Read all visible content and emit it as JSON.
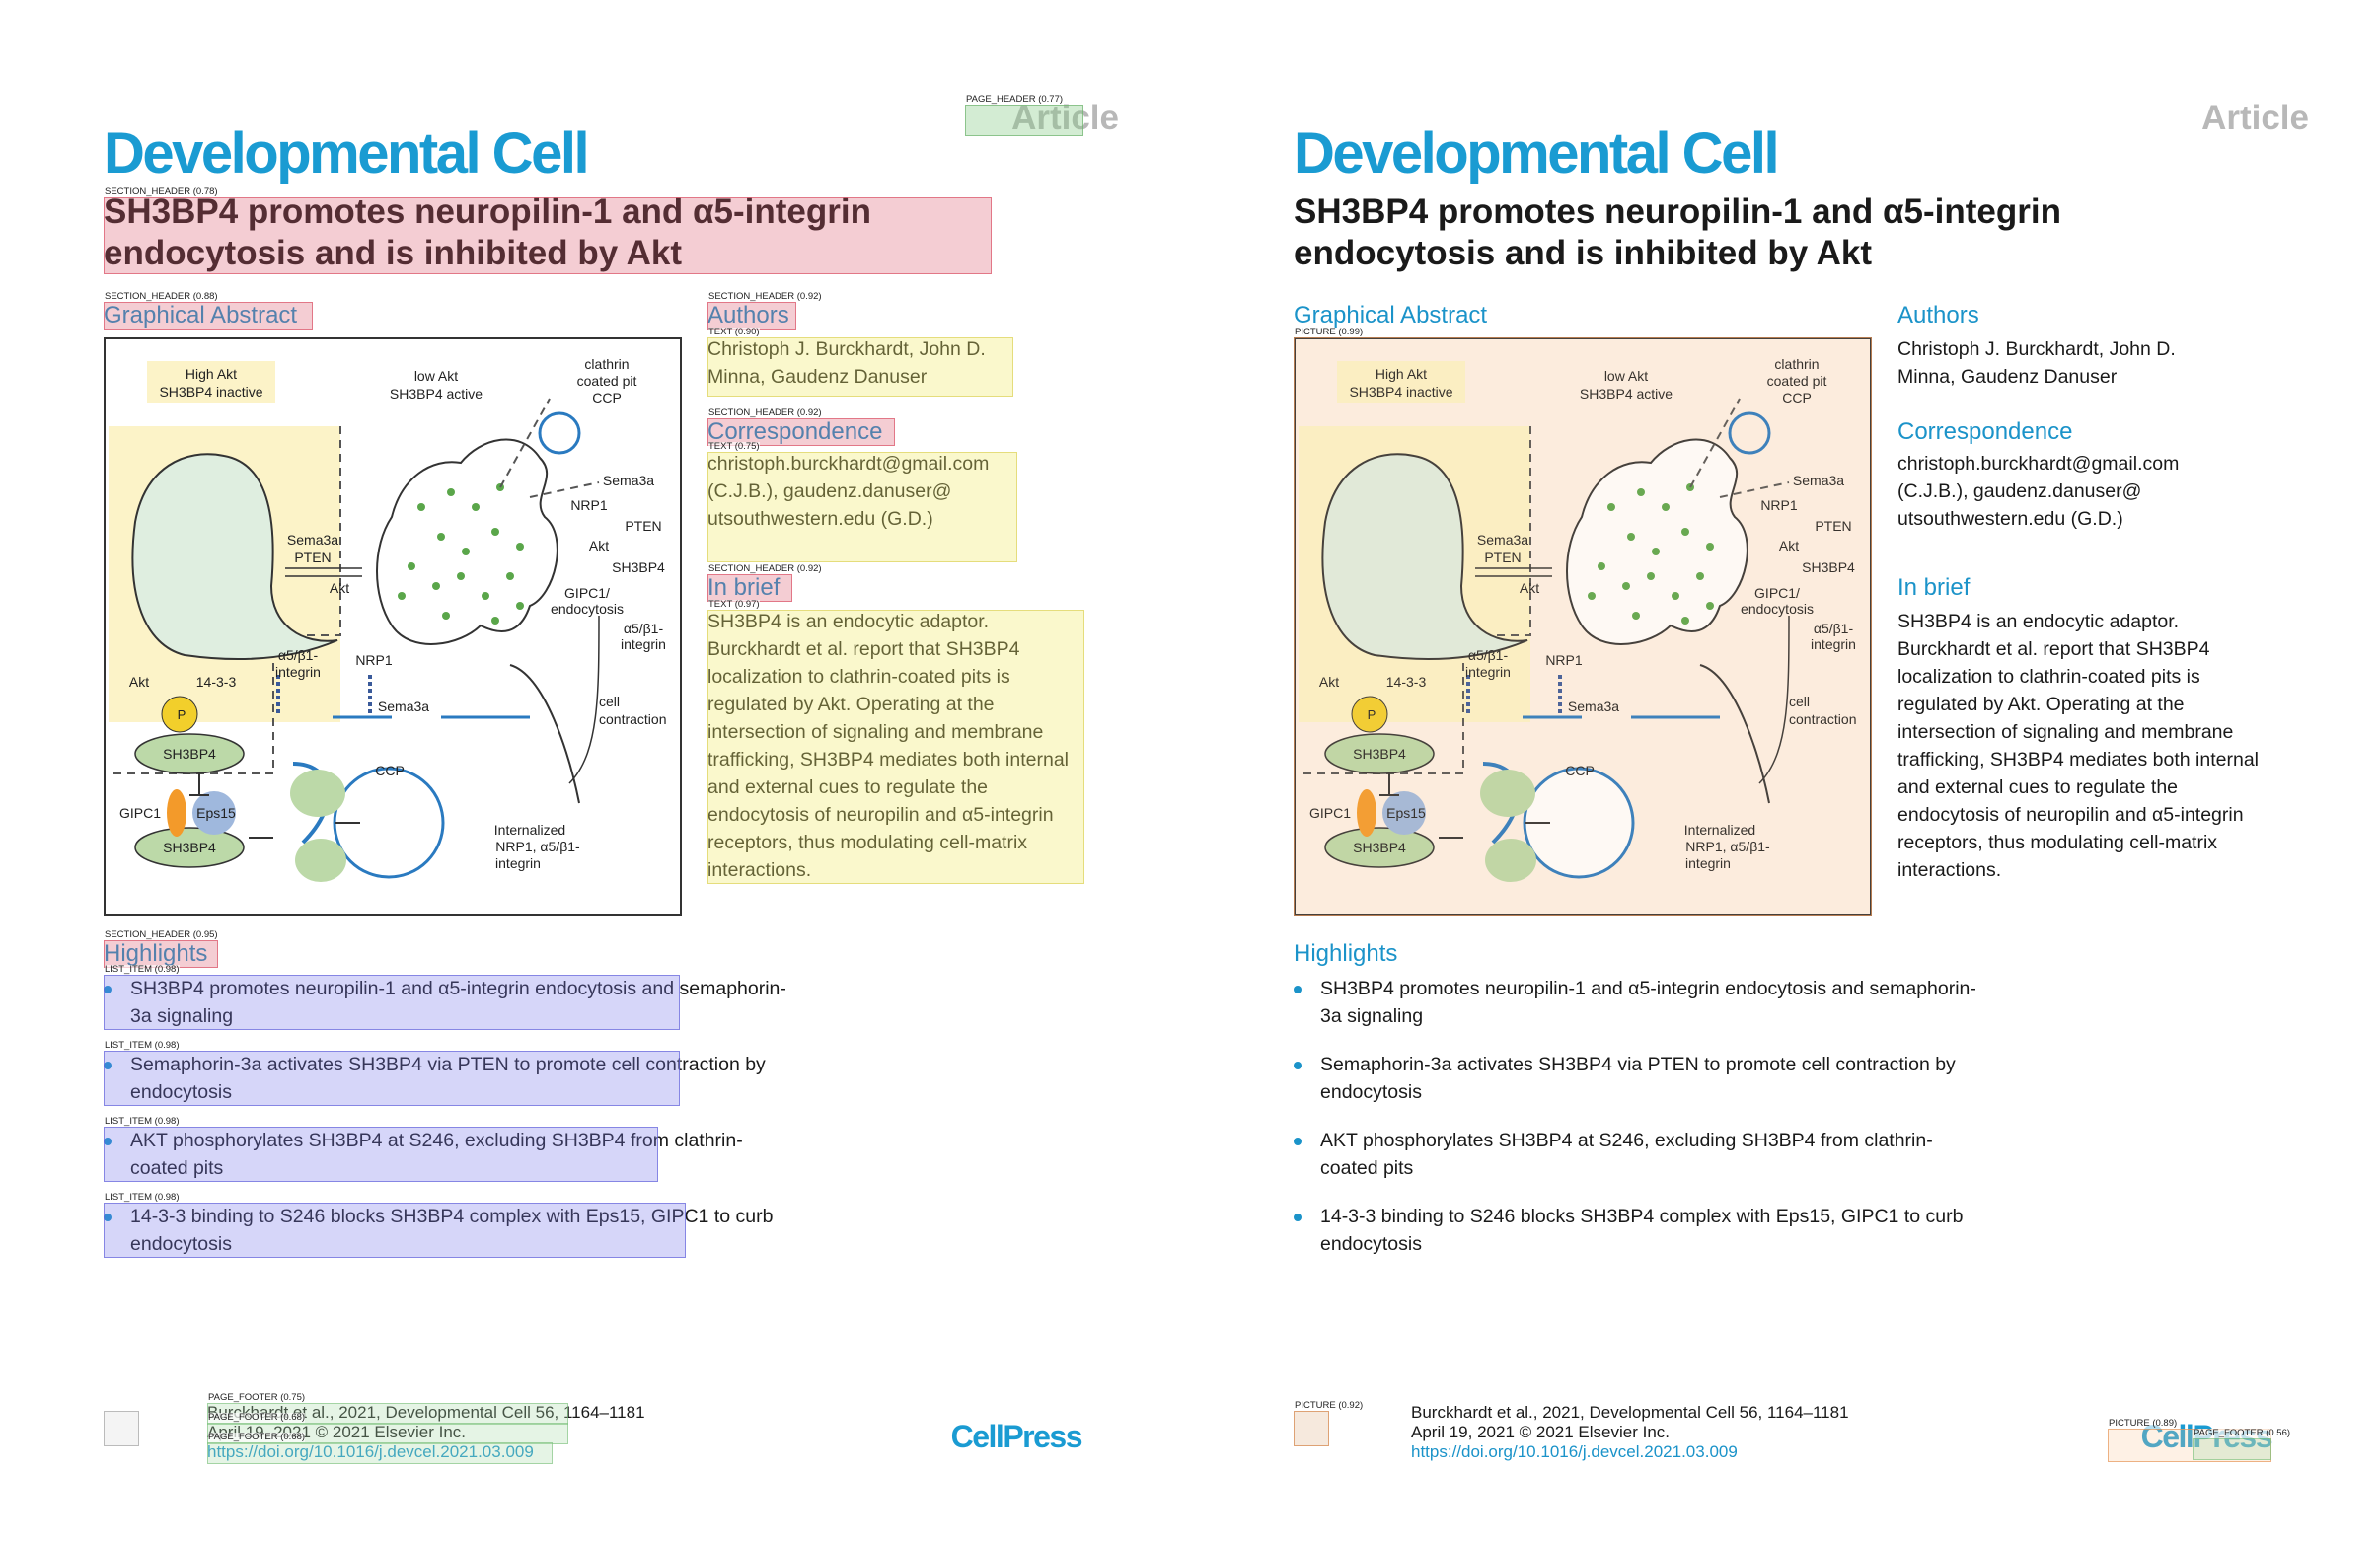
{
  "journal": "Developmental Cell",
  "article_label": "Article",
  "title": "SH3BP4 promotes neuropilin-1 and α5-integrin endocytosis and is inhibited by Akt",
  "sections": {
    "graphical_abstract": "Graphical Abstract",
    "authors": "Authors",
    "correspondence": "Correspondence",
    "in_brief": "In brief",
    "highlights": "Highlights"
  },
  "authors": "Christoph J. Burckhardt, John D. Minna, Gaudenz Danuser",
  "correspondence": "christoph.burckhardt@gmail.com (C.J.B.), gaudenz.danuser@ utsouthwestern.edu (G.D.)",
  "in_brief": "SH3BP4 is an endocytic adaptor. Burckhardt et al. report that SH3BP4 localization to clathrin-coated pits is regulated by Akt. Operating at the intersection of signaling and membrane trafficking, SH3BP4 mediates both internal and external cues to regulate the endocytosis of neuropilin and α5-integrin receptors, thus modulating cell-matrix interactions.",
  "highlights": [
    "SH3BP4 promotes neuropilin-1 and α5-integrin endocytosis and semaphorin-3a signaling",
    "Semaphorin-3a activates SH3BP4 via PTEN to promote cell contraction by endocytosis",
    "AKT phosphorylates SH3BP4 at S246, excluding SH3BP4 from clathrin-coated pits",
    "14-3-3 binding to S246 blocks SH3BP4 complex with Eps15, GIPC1 to curb endocytosis"
  ],
  "footer": {
    "citation": "Burckhardt et al., 2021, Developmental Cell 56, 1164–1181",
    "date": "April 19, 2021 © 2021 Elsevier Inc.",
    "doi": "https://doi.org/10.1016/j.devcel.2021.03.009"
  },
  "publisher": "CellPress",
  "figure": {
    "high_akt": "High Akt",
    "sh3bp4_inactive": "SH3BP4 inactive",
    "low_akt": "low Akt",
    "sh3bp4_active": "SH3BP4 active",
    "clathrin": "clathrin",
    "coated_pit": "coated pit",
    "ccp": "CCP",
    "sema3a": "Sema3a",
    "nrp1": "NRP1",
    "pten": "PTEN",
    "akt": "Akt",
    "sh3bp4": "SH3BP4",
    "gipc1_endocytosis_1": "GIPC1/",
    "gipc1_endocytosis_2": "endocytosis",
    "a5b1_1": "α5/β1-",
    "a5b1_2": "integrin",
    "cell": "cell",
    "contraction": "contraction",
    "sema3a_pten_1": "Sema3a",
    "sema3a_pten_2": "PTEN",
    "akt_arrow": "Akt",
    "fourteen33": "14-3-3",
    "p": "P",
    "gipc1": "GIPC1",
    "eps15": "Eps15",
    "internalized_1": "Internalized",
    "internalized_2": "NRP1, α5/β1-",
    "internalized_3": "integrin"
  },
  "overlay_tags": {
    "page_header": "PAGE_HEADER (0.77)",
    "title": "SECTION_HEADER (0.78)",
    "ga": "SECTION_HEADER (0.88)",
    "authors": "SECTION_HEADER (0.92)",
    "authors_text": "TEXT (0.90)",
    "corr": "SECTION_HEADER (0.92)",
    "corr_text": "TEXT (0.75)",
    "inbrief": "SECTION_HEADER (0.92)",
    "inbrief_text": "TEXT (0.97)",
    "highlights": "SECTION_HEADER (0.95)",
    "li": "LIST_ITEM (0.98)",
    "footer1": "PAGE_FOOTER (0.75)",
    "footer2": "PAGE_FOOTER (0.68)",
    "footer3": "PAGE_FOOTER (0.68)",
    "picture": "PICTURE (0.99)",
    "pic_small": "PICTURE (0.92)",
    "pic_cp": "PICTURE (0.89)",
    "footer_cp": "PAGE_FOOTER (0.56)"
  }
}
